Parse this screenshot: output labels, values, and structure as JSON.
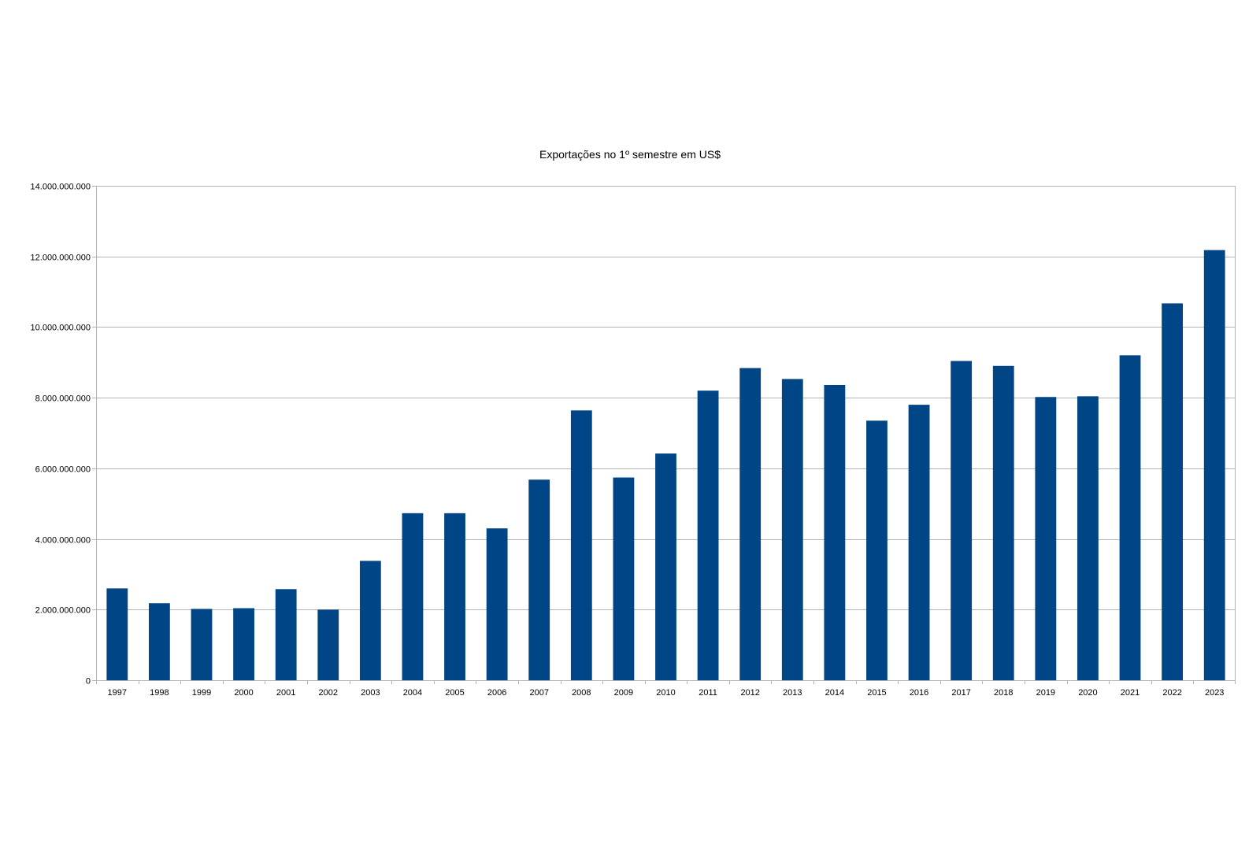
{
  "chart_data": {
    "type": "bar",
    "title": "Exportações no 1º semestre em US$",
    "xlabel": "",
    "ylabel": "",
    "ylim": [
      0,
      14000000000
    ],
    "yticks": [
      0,
      2000000000,
      4000000000,
      6000000000,
      8000000000,
      10000000000,
      12000000000,
      14000000000
    ],
    "ytick_labels": [
      "0",
      "2.000.000.000",
      "4.000.000.000",
      "6.000.000.000",
      "8.000.000.000",
      "10.000.000.000",
      "12.000.000.000",
      "14.000.000.000"
    ],
    "grid": true,
    "legend": "none",
    "bar_color": "#004586",
    "categories": [
      "1997",
      "1998",
      "1999",
      "2000",
      "2001",
      "2002",
      "2003",
      "2004",
      "2005",
      "2006",
      "2007",
      "2008",
      "2009",
      "2010",
      "2011",
      "2012",
      "2013",
      "2014",
      "2015",
      "2016",
      "2017",
      "2018",
      "2019",
      "2020",
      "2021",
      "2022",
      "2023"
    ],
    "values": [
      2600000000,
      2180000000,
      2020000000,
      2040000000,
      2580000000,
      2000000000,
      3380000000,
      4730000000,
      4730000000,
      4300000000,
      5680000000,
      7640000000,
      5740000000,
      6420000000,
      8200000000,
      8840000000,
      8530000000,
      8360000000,
      7350000000,
      7800000000,
      9040000000,
      8900000000,
      8020000000,
      8040000000,
      9200000000,
      10670000000,
      12180000000
    ]
  }
}
